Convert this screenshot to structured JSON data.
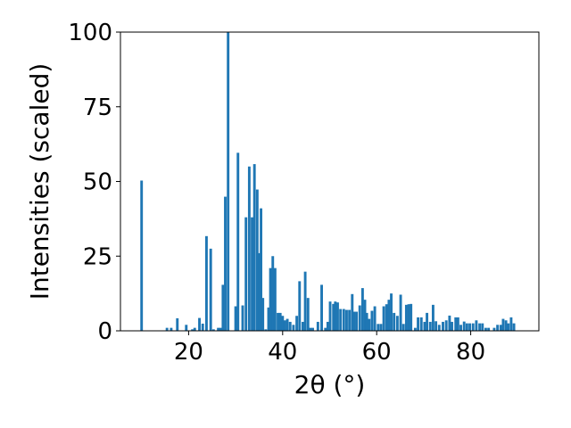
{
  "chart_data": {
    "type": "bar",
    "xlabel": "2θ (°)",
    "ylabel": "Intensities (scaled)",
    "xlim": [
      5.5,
      94.5
    ],
    "ylim": [
      0,
      100
    ],
    "grid": false,
    "bar_color": "#1f77b4",
    "x_ticks": [
      20,
      40,
      60,
      80
    ],
    "y_ticks": [
      0,
      25,
      50,
      75,
      100
    ],
    "bar_width": 0.55,
    "x": [
      10.0,
      15.4,
      16.3,
      17.6,
      19.5,
      20.8,
      21.3,
      22.3,
      23.0,
      23.8,
      24.7,
      25.3,
      26.3,
      26.8,
      27.3,
      27.8,
      28.4,
      30.0,
      30.5,
      31.5,
      32.2,
      32.9,
      33.5,
      34.0,
      34.6,
      35.0,
      35.4,
      35.8,
      36.4,
      37.0,
      37.4,
      37.9,
      38.4,
      39.0,
      39.5,
      40.0,
      40.5,
      41.0,
      41.6,
      42.3,
      43.0,
      43.6,
      44.3,
      44.8,
      45.4,
      45.9,
      46.4,
      47.5,
      48.3,
      49.1,
      49.6,
      50.1,
      50.8,
      51.2,
      51.7,
      52.3,
      53.0,
      53.6,
      54.2,
      54.8,
      55.2,
      55.7,
      56.4,
      57.0,
      57.5,
      57.9,
      58.4,
      59.0,
      59.6,
      60.3,
      60.9,
      61.5,
      62.1,
      62.6,
      63.1,
      63.7,
      64.4,
      65.1,
      65.7,
      66.3,
      66.8,
      67.3,
      68.2,
      68.8,
      69.5,
      70.2,
      70.7,
      71.4,
      72.0,
      72.6,
      73.3,
      74.1,
      74.8,
      75.5,
      76.0,
      76.8,
      77.3,
      77.9,
      78.6,
      79.2,
      79.8,
      80.5,
      81.2,
      81.9,
      82.5,
      83.2,
      83.8,
      85.0,
      85.7,
      86.4,
      86.9,
      87.5,
      88.0,
      88.6,
      89.2
    ],
    "values": [
      50.3,
      1,
      1,
      4.2,
      2,
      0.5,
      1,
      4.3,
      2.4,
      31.7,
      27.5,
      0.5,
      1,
      1,
      15.4,
      44.9,
      100,
      8.2,
      59.6,
      8.5,
      38,
      55,
      38,
      55.8,
      47.3,
      26,
      41,
      11,
      0.5,
      7.8,
      21,
      25,
      21,
      6,
      6,
      5,
      3.5,
      4,
      3,
      2,
      5,
      16.6,
      3,
      19.8,
      11,
      1,
      1,
      3,
      15.4,
      1,
      3,
      9.8,
      9,
      9.8,
      9.5,
      7.3,
      7.3,
      7,
      7,
      12.3,
      6.4,
      6.4,
      8.5,
      14.3,
      10.4,
      6,
      4,
      6.7,
      8.2,
      2.3,
      2.3,
      8.2,
      8.9,
      10.4,
      12.5,
      6,
      5,
      12.1,
      2.3,
      8.7,
      8.9,
      9,
      1,
      4.5,
      4.5,
      3,
      6,
      3,
      8.7,
      3.2,
      2,
      3,
      3.5,
      5.1,
      3,
      4.5,
      4.5,
      2,
      3.1,
      2.5,
      2.5,
      2.5,
      3.5,
      2.5,
      2.5,
      1,
      1,
      1,
      2,
      2,
      4,
      3.5,
      2.5,
      4.5,
      2.5
    ]
  }
}
